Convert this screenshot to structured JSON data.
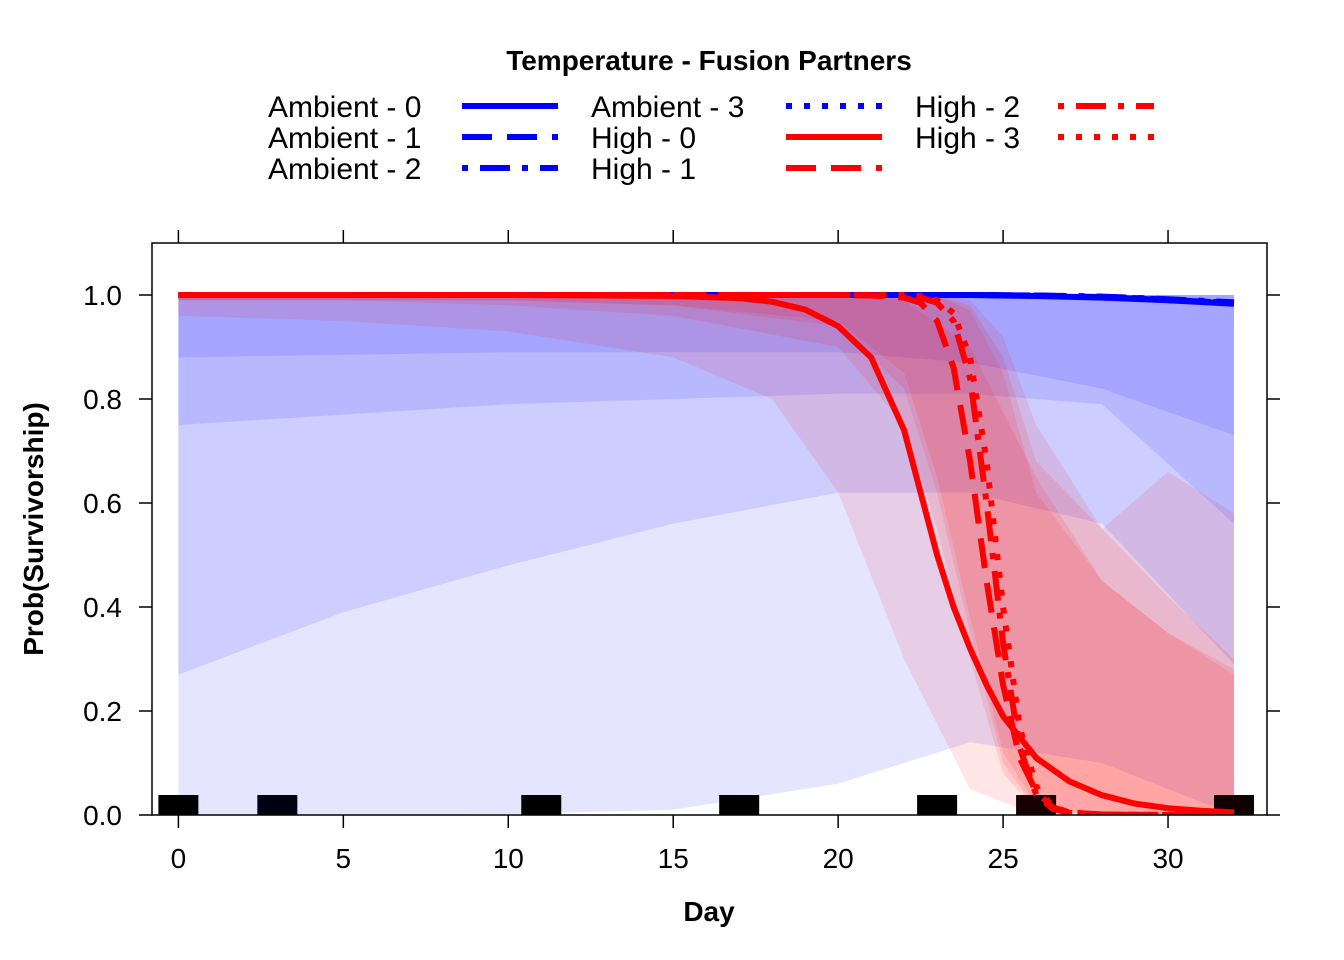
{
  "chart_data": {
    "type": "line",
    "legend": {
      "title": "Temperature - Fusion Partners",
      "placement": "top",
      "entries": [
        {
          "label": "Ambient - 0",
          "color": "#0000FF",
          "dash": "solid"
        },
        {
          "label": "Ambient - 1",
          "color": "#0000FF",
          "dash": "dashed"
        },
        {
          "label": "Ambient - 2",
          "color": "#0000FF",
          "dash": "dotdash"
        },
        {
          "label": "Ambient - 3",
          "color": "#0000FF",
          "dash": "dotted"
        },
        {
          "label": "High - 0",
          "color": "#FF0000",
          "dash": "solid"
        },
        {
          "label": "High - 1",
          "color": "#FF0000",
          "dash": "dashed"
        },
        {
          "label": "High - 2",
          "color": "#FF0000",
          "dash": "dotdash"
        },
        {
          "label": "High - 3",
          "color": "#FF0000",
          "dash": "dotted"
        }
      ]
    },
    "xlabel": "Day",
    "ylabel": "Prob(Survivorship)",
    "xlim": [
      -0.8,
      33
    ],
    "ylim": [
      0,
      1.1
    ],
    "xticks": [
      0,
      5,
      10,
      15,
      20,
      25,
      30
    ],
    "yticks": [
      "0.0",
      "0.2",
      "0.4",
      "0.6",
      "0.8",
      "1.0"
    ],
    "grid": false,
    "series": [
      {
        "name": "Ambient - 0",
        "color": "#0000FF",
        "dash": "solid",
        "x": [
          0,
          5,
          10,
          15,
          20,
          24,
          26,
          28,
          30,
          32
        ],
        "y": [
          1.0,
          1.0,
          1.0,
          1.0,
          1.0,
          1.0,
          0.998,
          0.995,
          0.99,
          0.983
        ]
      },
      {
        "name": "Ambient - 1",
        "color": "#0000FF",
        "dash": "dashed",
        "x": [
          0,
          5,
          10,
          15,
          20,
          24,
          26,
          28,
          30,
          32
        ],
        "y": [
          1.0,
          1.0,
          1.0,
          1.0,
          1.0,
          1.0,
          0.999,
          0.996,
          0.99,
          0.985
        ]
      },
      {
        "name": "Ambient - 2",
        "color": "#0000FF",
        "dash": "dotdash",
        "x": [
          0,
          5,
          10,
          15,
          20,
          24,
          26,
          28,
          30,
          32
        ],
        "y": [
          1.0,
          1.0,
          1.0,
          1.0,
          1.0,
          1.0,
          0.999,
          0.997,
          0.992,
          0.986
        ]
      },
      {
        "name": "Ambient - 3",
        "color": "#0000FF",
        "dash": "dotted",
        "x": [
          0,
          5,
          10,
          15,
          20,
          24,
          26,
          28,
          30,
          32
        ],
        "y": [
          1.0,
          1.0,
          1.0,
          1.0,
          1.0,
          1.0,
          0.999,
          0.997,
          0.991,
          0.984
        ]
      },
      {
        "name": "High - 0",
        "color": "#FF0000",
        "dash": "solid",
        "x": [
          0,
          10,
          15,
          17,
          18,
          19,
          20,
          21,
          22,
          22.5,
          23,
          23.5,
          24,
          24.5,
          25,
          26,
          27,
          28,
          29,
          30,
          31,
          32
        ],
        "y": [
          1.0,
          1.0,
          0.998,
          0.994,
          0.987,
          0.972,
          0.94,
          0.88,
          0.74,
          0.62,
          0.5,
          0.4,
          0.32,
          0.25,
          0.19,
          0.11,
          0.065,
          0.038,
          0.022,
          0.013,
          0.008,
          0.005
        ]
      },
      {
        "name": "High - 1",
        "color": "#FF0000",
        "dash": "dashed",
        "x": [
          0,
          15,
          20,
          21,
          22,
          22.5,
          23,
          23.5,
          24,
          24.5,
          25,
          25.5,
          26,
          26.5,
          27,
          28,
          30,
          32
        ],
        "y": [
          1.0,
          1.0,
          1.0,
          0.999,
          0.995,
          0.985,
          0.95,
          0.86,
          0.68,
          0.45,
          0.25,
          0.11,
          0.045,
          0.015,
          0.005,
          0.001,
          0.0,
          0.0
        ]
      },
      {
        "name": "High - 2",
        "color": "#FF0000",
        "dash": "dotdash",
        "x": [
          0,
          15,
          20,
          22,
          22.5,
          23,
          23.5,
          24,
          24.5,
          25,
          25.5,
          26,
          26.5,
          27,
          28,
          30,
          32
        ],
        "y": [
          1.0,
          1.0,
          1.0,
          0.999,
          0.995,
          0.985,
          0.95,
          0.84,
          0.6,
          0.33,
          0.13,
          0.04,
          0.012,
          0.004,
          0.001,
          0.0,
          0.0
        ]
      },
      {
        "name": "High - 3",
        "color": "#FF0000",
        "dash": "dotted",
        "x": [
          0,
          15,
          20,
          22,
          22.5,
          23,
          23.5,
          24,
          24.5,
          25,
          25.5,
          26,
          26.5,
          27,
          28,
          30,
          32
        ],
        "y": [
          1.0,
          1.0,
          1.0,
          1.0,
          0.998,
          0.99,
          0.965,
          0.88,
          0.68,
          0.4,
          0.17,
          0.055,
          0.016,
          0.005,
          0.001,
          0.0,
          0.0
        ]
      }
    ],
    "bands": [
      {
        "color": "#0000FF",
        "opacity": 0.1,
        "x": [
          0,
          5,
          10,
          15,
          20,
          24,
          28,
          32
        ],
        "lower": [
          0.0,
          0.0,
          0.002,
          0.01,
          0.06,
          0.14,
          0.1,
          0.0
        ],
        "upper": [
          1.0,
          1.0,
          1.0,
          1.0,
          1.0,
          1.0,
          1.0,
          1.0
        ]
      },
      {
        "color": "#0000FF",
        "opacity": 0.1,
        "x": [
          0,
          5,
          10,
          15,
          20,
          24,
          28,
          32
        ],
        "lower": [
          0.27,
          0.39,
          0.48,
          0.56,
          0.62,
          0.62,
          0.56,
          0.29
        ],
        "upper": [
          1.0,
          1.0,
          1.0,
          1.0,
          1.0,
          1.0,
          1.0,
          1.0
        ]
      },
      {
        "color": "#0000FF",
        "opacity": 0.1,
        "x": [
          0,
          5,
          10,
          15,
          20,
          24,
          28,
          32
        ],
        "lower": [
          0.75,
          0.77,
          0.79,
          0.8,
          0.81,
          0.81,
          0.79,
          0.56
        ],
        "upper": [
          1.0,
          1.0,
          1.0,
          1.0,
          1.0,
          1.0,
          1.0,
          1.0
        ]
      },
      {
        "color": "#0000FF",
        "opacity": 0.1,
        "x": [
          0,
          5,
          10,
          15,
          20,
          24,
          28,
          32
        ],
        "lower": [
          0.88,
          0.885,
          0.89,
          0.89,
          0.89,
          0.87,
          0.82,
          0.73
        ],
        "upper": [
          1.0,
          1.0,
          1.0,
          1.0,
          1.0,
          1.0,
          1.0,
          1.0
        ]
      },
      {
        "color": "#FF0000",
        "opacity": 0.1,
        "x": [
          0,
          5,
          10,
          15,
          18,
          20,
          22,
          24,
          26,
          28,
          30,
          32
        ],
        "lower": [
          0.96,
          0.95,
          0.93,
          0.88,
          0.8,
          0.62,
          0.3,
          0.05,
          0.0,
          0.0,
          0.0,
          0.0
        ],
        "upper": [
          1.0,
          1.0,
          1.0,
          1.0,
          1.0,
          1.0,
          0.99,
          0.9,
          0.65,
          0.45,
          0.35,
          0.28
        ]
      },
      {
        "color": "#FF0000",
        "opacity": 0.1,
        "x": [
          0,
          5,
          10,
          15,
          20,
          22,
          23,
          24,
          25,
          26,
          28,
          30,
          32
        ],
        "lower": [
          0.99,
          0.99,
          0.98,
          0.96,
          0.9,
          0.75,
          0.55,
          0.3,
          0.08,
          0.01,
          0.0,
          0.0,
          0.0
        ],
        "upper": [
          1.0,
          1.0,
          1.0,
          1.0,
          1.0,
          1.0,
          1.0,
          0.97,
          0.85,
          0.62,
          0.45,
          0.35,
          0.27
        ]
      },
      {
        "color": "#FF0000",
        "opacity": 0.1,
        "x": [
          0,
          5,
          10,
          15,
          20,
          22,
          23,
          24,
          25,
          26,
          28,
          30,
          32
        ],
        "lower": [
          0.99,
          0.99,
          0.99,
          0.98,
          0.94,
          0.82,
          0.62,
          0.35,
          0.1,
          0.01,
          0.0,
          0.0,
          0.0
        ],
        "upper": [
          1.0,
          1.0,
          1.0,
          1.0,
          1.0,
          1.0,
          1.0,
          0.98,
          0.88,
          0.68,
          0.55,
          0.66,
          0.58
        ]
      },
      {
        "color": "#FF0000",
        "opacity": 0.1,
        "x": [
          0,
          5,
          10,
          15,
          20,
          22,
          23,
          24,
          25,
          26,
          28,
          30,
          32
        ],
        "lower": [
          0.99,
          0.99,
          0.99,
          0.98,
          0.95,
          0.85,
          0.65,
          0.38,
          0.12,
          0.02,
          0.0,
          0.0,
          0.0
        ],
        "upper": [
          1.0,
          1.0,
          1.0,
          1.0,
          1.0,
          1.0,
          1.0,
          0.99,
          0.92,
          0.75,
          0.55,
          0.42,
          0.3
        ]
      }
    ],
    "rug": {
      "x": [
        0,
        3,
        11,
        17,
        23,
        26,
        32
      ],
      "colors": [
        "#000000",
        "#000010",
        "#000000",
        "#000000",
        "#000000",
        "#180000",
        "#100000"
      ]
    }
  }
}
